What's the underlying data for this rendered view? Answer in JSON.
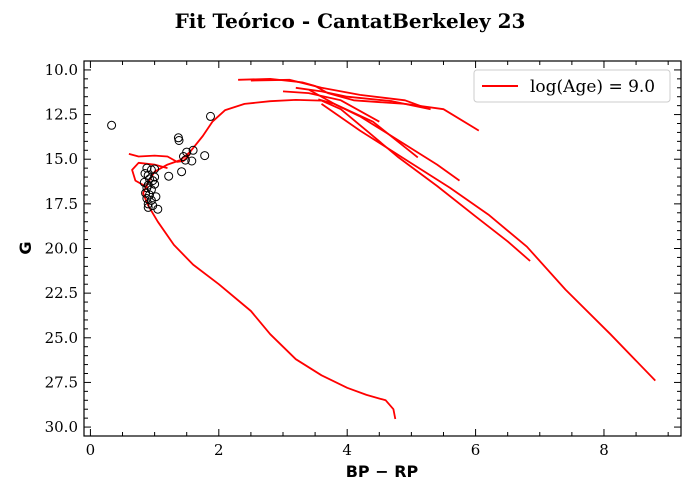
{
  "chart_data": {
    "type": "scatter",
    "title": "Fit Teórico - CantatBerkeley 23",
    "xlabel": "BP − RP",
    "ylabel": "G",
    "xlim": [
      -0.1,
      9.2
    ],
    "ylim": [
      30.5,
      9.5
    ],
    "y_inverted": true,
    "grid": false,
    "legend_position": "top-right",
    "xticks": [
      0,
      2,
      4,
      6,
      8
    ],
    "xtick_labels": [
      "0",
      "2",
      "4",
      "6",
      "8"
    ],
    "yticks": [
      10.0,
      12.5,
      15.0,
      17.5,
      20.0,
      22.5,
      25.0,
      27.5,
      30.0
    ],
    "ytick_labels": [
      "10.0",
      "12.5",
      "15.0",
      "17.5",
      "20.0",
      "22.5",
      "25.0",
      "27.5",
      "30.0"
    ],
    "colors": {
      "isochrone": "#ff0000",
      "stars": "#000000"
    },
    "isochrone": {
      "name": "log(Age) = 9.0",
      "segments": [
        [
          [
            4.75,
            29.55
          ],
          [
            4.72,
            29.0
          ],
          [
            4.6,
            28.5
          ],
          [
            4.3,
            28.2
          ],
          [
            4.0,
            27.8
          ],
          [
            3.6,
            27.1
          ],
          [
            3.2,
            26.2
          ],
          [
            2.8,
            24.8
          ],
          [
            2.5,
            23.5
          ],
          [
            2.0,
            22.0
          ],
          [
            1.6,
            20.9
          ],
          [
            1.3,
            19.8
          ],
          [
            1.05,
            18.5
          ],
          [
            0.9,
            17.6
          ],
          [
            0.82,
            16.9
          ],
          [
            0.9,
            16.3
          ],
          [
            1.0,
            15.7
          ],
          [
            1.2,
            15.3
          ],
          [
            1.4,
            15.05
          ],
          [
            1.55,
            14.6
          ],
          [
            1.75,
            13.7
          ],
          [
            1.9,
            12.9
          ],
          [
            2.1,
            12.25
          ],
          [
            2.4,
            11.9
          ],
          [
            2.8,
            11.75
          ],
          [
            3.2,
            11.68
          ],
          [
            3.6,
            11.72
          ],
          [
            3.9,
            12.2
          ],
          [
            4.3,
            13.4
          ],
          [
            4.8,
            14.9
          ],
          [
            5.4,
            16.5
          ],
          [
            6.0,
            18.2
          ],
          [
            6.5,
            19.6
          ],
          [
            6.85,
            20.7
          ]
        ],
        [
          [
            0.6,
            14.7
          ],
          [
            0.75,
            14.85
          ],
          [
            1.0,
            14.8
          ],
          [
            1.2,
            14.85
          ],
          [
            1.35,
            15.15
          ],
          [
            1.45,
            15.1
          ],
          [
            1.55,
            14.7
          ],
          [
            1.5,
            14.95
          ]
        ],
        [
          [
            0.9,
            16.6
          ],
          [
            0.7,
            16.2
          ],
          [
            0.65,
            15.6
          ],
          [
            0.75,
            15.2
          ],
          [
            1.0,
            15.3
          ],
          [
            1.2,
            15.5
          ]
        ],
        [
          [
            2.3,
            10.55
          ],
          [
            2.8,
            10.5
          ],
          [
            3.3,
            10.7
          ],
          [
            3.5,
            10.9
          ],
          [
            3.7,
            11.3
          ],
          [
            4.1,
            11.7
          ],
          [
            4.9,
            11.9
          ],
          [
            5.5,
            12.2
          ],
          [
            6.05,
            13.4
          ]
        ],
        [
          [
            2.5,
            10.6
          ],
          [
            3.1,
            10.55
          ],
          [
            3.6,
            11.0
          ],
          [
            4.2,
            11.4
          ],
          [
            4.9,
            11.7
          ],
          [
            5.2,
            12.1
          ]
        ],
        [
          [
            3.2,
            11.0
          ],
          [
            3.6,
            11.2
          ],
          [
            4.0,
            11.5
          ],
          [
            4.7,
            11.75
          ],
          [
            5.3,
            12.2
          ]
        ],
        [
          [
            3.55,
            11.65
          ],
          [
            3.8,
            11.9
          ],
          [
            4.2,
            12.6
          ],
          [
            4.6,
            13.5
          ],
          [
            5.0,
            14.4
          ],
          [
            5.4,
            15.3
          ],
          [
            5.75,
            16.2
          ]
        ],
        [
          [
            3.6,
            11.9
          ],
          [
            4.2,
            13.4
          ],
          [
            4.9,
            15.0
          ],
          [
            5.6,
            16.6
          ],
          [
            6.2,
            18.1
          ],
          [
            6.8,
            19.9
          ],
          [
            7.4,
            22.3
          ],
          [
            8.1,
            24.8
          ],
          [
            8.8,
            27.4
          ]
        ],
        [
          [
            3.4,
            11.1
          ],
          [
            3.8,
            11.9
          ],
          [
            4.4,
            12.9
          ],
          [
            5.1,
            14.9
          ]
        ],
        [
          [
            3.0,
            11.2
          ],
          [
            3.4,
            11.3
          ],
          [
            3.9,
            11.7
          ],
          [
            4.5,
            12.9
          ]
        ]
      ]
    },
    "stars": [
      [
        0.33,
        13.1
      ],
      [
        1.87,
        12.6
      ],
      [
        1.37,
        13.8
      ],
      [
        1.38,
        13.95
      ],
      [
        1.78,
        14.8
      ],
      [
        1.6,
        14.5
      ],
      [
        1.5,
        14.6
      ],
      [
        1.45,
        14.85
      ],
      [
        1.48,
        15.05
      ],
      [
        1.58,
        15.1
      ],
      [
        1.42,
        15.7
      ],
      [
        1.22,
        15.95
      ],
      [
        0.88,
        15.5
      ],
      [
        0.95,
        15.6
      ],
      [
        1.0,
        15.55
      ],
      [
        0.85,
        15.8
      ],
      [
        0.9,
        15.9
      ],
      [
        1.0,
        16.0
      ],
      [
        0.92,
        16.1
      ],
      [
        0.97,
        16.2
      ],
      [
        0.84,
        16.3
      ],
      [
        0.9,
        16.45
      ],
      [
        1.0,
        16.4
      ],
      [
        0.88,
        16.6
      ],
      [
        0.95,
        16.7
      ],
      [
        0.86,
        16.9
      ],
      [
        0.92,
        17.0
      ],
      [
        1.02,
        17.1
      ],
      [
        0.88,
        17.2
      ],
      [
        0.95,
        17.3
      ],
      [
        0.9,
        17.5
      ],
      [
        0.97,
        17.6
      ],
      [
        0.9,
        17.7
      ],
      [
        1.05,
        17.8
      ]
    ]
  }
}
